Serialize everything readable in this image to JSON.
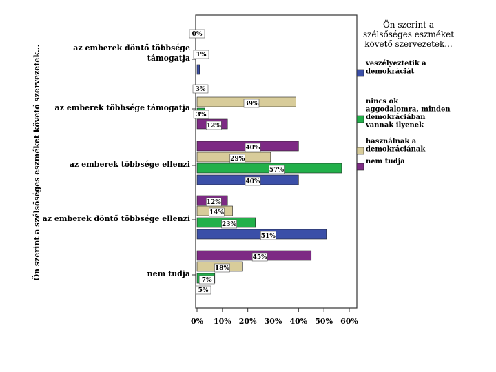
{
  "chart_data": {
    "type": "bar",
    "orientation": "horizontal",
    "title": "",
    "ylabel": "Ön szerint a szélsőséges eszméket követő szervezetek...",
    "xlabel": "",
    "xlim": [
      0,
      60
    ],
    "xticks": [
      "0%",
      "10%",
      "20%",
      "30%",
      "40%",
      "50%",
      "60%"
    ],
    "categories": [
      {
        "label_lines": [
          "az emberek döntő többsége",
          "támogatja"
        ]
      },
      {
        "label_lines": [
          "az emberek többsége támogatja"
        ]
      },
      {
        "label_lines": [
          "az emberek többsége ellenzi"
        ]
      },
      {
        "label_lines": [
          "az emberek döntő többsége ellenzi"
        ]
      },
      {
        "label_lines": [
          "nem tudja"
        ]
      }
    ],
    "legend": {
      "title_lines": [
        "Ön szerint a",
        "szélsőséges eszméket",
        "követő szervezetek..."
      ],
      "position": "right"
    },
    "series": [
      {
        "name": "veszélyeztetik a demokráciát",
        "legend_lines": [
          "veszélyeztetik a",
          "demokráciát"
        ],
        "color": "#3b4fa8",
        "values": [
          1,
          null,
          40,
          51,
          null
        ],
        "labels": [
          "1%",
          "",
          "40%",
          "51%",
          ""
        ]
      },
      {
        "name": "nincs ok aggodalomra, minden demokráciában vannak ilyenek",
        "legend_lines": [
          "nincs ok",
          "aggodalomra, minden",
          "demokráciában",
          "vannak ilyenek"
        ],
        "color": "#22b04a",
        "values": [
          null,
          3,
          57,
          23,
          7
        ],
        "labels": [
          "",
          "3%",
          "57%",
          "23%",
          "7%"
        ]
      },
      {
        "name": "használnak a demokráciának",
        "legend_lines": [
          "használnak a",
          "demokráciának"
        ],
        "color": "#d8cc9a",
        "values": [
          null,
          39,
          29,
          14,
          18
        ],
        "labels": [
          "",
          "39%",
          "29%",
          "14%",
          "18%"
        ]
      },
      {
        "name": "nem tudja",
        "legend_lines": [
          "nem tudja"
        ],
        "color": "#7d2a84",
        "values": [
          null,
          12,
          40,
          12,
          45
        ],
        "labels": [
          "",
          "12%",
          "40%",
          "12%",
          "45%"
        ]
      }
    ],
    "extra_labels": [
      {
        "category": 0,
        "text": "0%"
      },
      {
        "category": 1,
        "text": "3%"
      },
      {
        "category": 4,
        "text": "5%"
      }
    ]
  }
}
